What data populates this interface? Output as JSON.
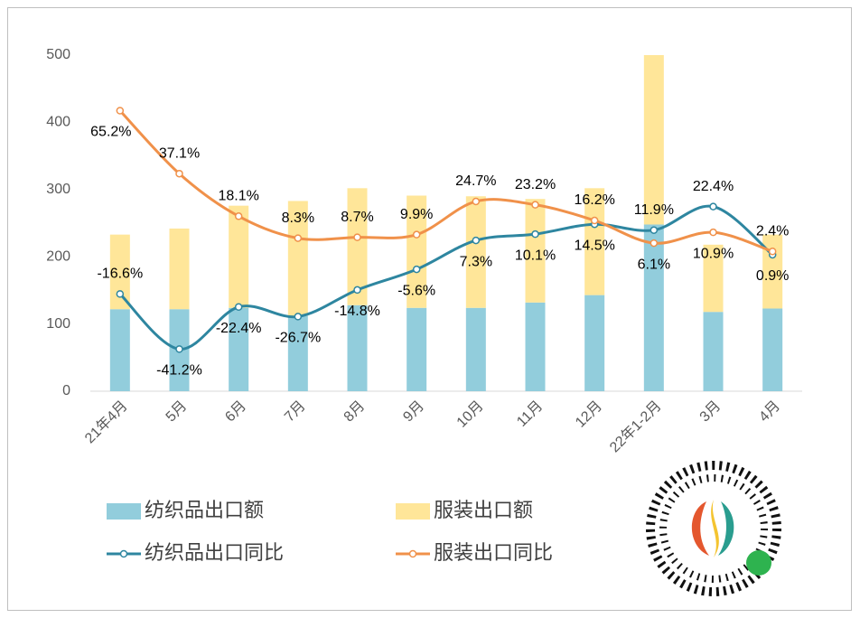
{
  "chart_data": {
    "type": "bar",
    "categories": [
      "21年4月",
      "5月",
      "6月",
      "7月",
      "8月",
      "9月",
      "10月",
      "11月",
      "12月",
      "22年1-2月",
      "3月",
      "4月"
    ],
    "ylim": [
      0,
      500
    ],
    "yticks": [
      0,
      100,
      200,
      300,
      400,
      500
    ],
    "y2lim": [
      -60,
      90
    ],
    "stacked": true,
    "series": [
      {
        "name": "纺织品出口额",
        "type": "bar",
        "color": "#92CDDC",
        "values": [
          122,
          122,
          124,
          112,
          128,
          124,
          124,
          132,
          143,
          248,
          118,
          123
        ]
      },
      {
        "name": "服装出口额",
        "type": "bar",
        "color": "#FFE699",
        "values": [
          111,
          120,
          152,
          171,
          174,
          167,
          166,
          154,
          159,
          252,
          100,
          110
        ]
      },
      {
        "name": "纺织品出口同比",
        "type": "line",
        "axis": "y2",
        "color": "#2E86A0",
        "values": [
          -16.6,
          -41.2,
          -22.4,
          -26.7,
          -14.8,
          -5.6,
          7.3,
          10.1,
          14.5,
          11.9,
          22.4,
          0.9
        ],
        "value_labels": [
          "-16.6%",
          "-41.2%",
          "-22.4%",
          "-26.7%",
          "-14.8%",
          "-5.6%",
          "7.3%",
          "10.1%",
          "14.5%",
          "11.9%",
          "22.4%",
          "0.9%"
        ]
      },
      {
        "name": "服装出口同比",
        "type": "line",
        "axis": "y2",
        "color": "#F0914A",
        "values": [
          65.2,
          37.1,
          18.1,
          8.3,
          8.7,
          9.9,
          24.7,
          23.2,
          16.2,
          6.1,
          10.9,
          2.4
        ],
        "value_labels": [
          "65.2%",
          "37.1%",
          "18.1%",
          "8.3%",
          "8.7%",
          "9.9%",
          "24.7%",
          "23.2%",
          "16.2%",
          "6.1%",
          "10.9%",
          "2.4%"
        ]
      }
    ]
  }
}
